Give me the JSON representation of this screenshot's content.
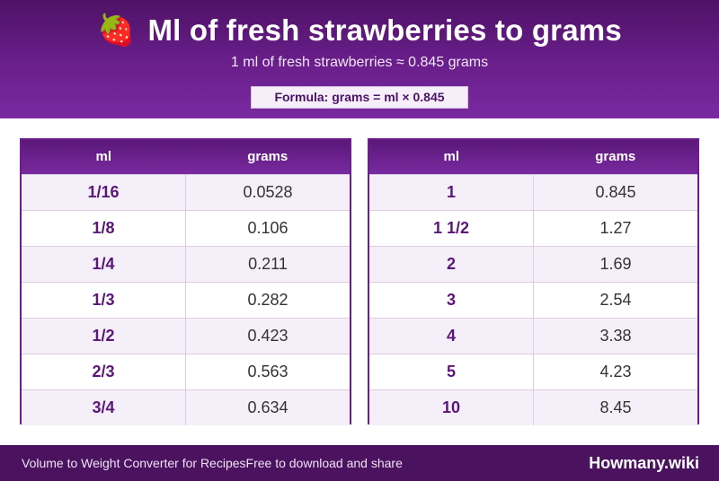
{
  "header": {
    "icon": "strawberry-icon",
    "icon_glyph": "🍓",
    "title": "Ml of fresh strawberries to grams",
    "subtitle": "1 ml of fresh strawberries ≈ 0.845 grams",
    "formula": "Formula: grams = ml × 0.845"
  },
  "tables": {
    "left": {
      "col_ml": "ml",
      "col_grams": "grams",
      "rows": [
        {
          "ml": "1/16",
          "grams": "0.0528"
        },
        {
          "ml": "1/8",
          "grams": "0.106"
        },
        {
          "ml": "1/4",
          "grams": "0.211"
        },
        {
          "ml": "1/3",
          "grams": "0.282"
        },
        {
          "ml": "1/2",
          "grams": "0.423"
        },
        {
          "ml": "2/3",
          "grams": "0.563"
        },
        {
          "ml": "3/4",
          "grams": "0.634"
        }
      ]
    },
    "right": {
      "col_ml": "ml",
      "col_grams": "grams",
      "rows": [
        {
          "ml": "1",
          "grams": "0.845"
        },
        {
          "ml": "1 1/2",
          "grams": "1.27"
        },
        {
          "ml": "2",
          "grams": "1.69"
        },
        {
          "ml": "3",
          "grams": "2.54"
        },
        {
          "ml": "4",
          "grams": "3.38"
        },
        {
          "ml": "5",
          "grams": "4.23"
        },
        {
          "ml": "10",
          "grams": "8.45"
        }
      ]
    }
  },
  "footer": {
    "left_text": "Volume to Weight Converter for RecipesFree to download and share",
    "brand": "Howmany.wiki"
  },
  "colors": {
    "header_purple": "#6a1f8c",
    "footer_purple": "#4a125f",
    "row_alt": "#f4eff8"
  }
}
